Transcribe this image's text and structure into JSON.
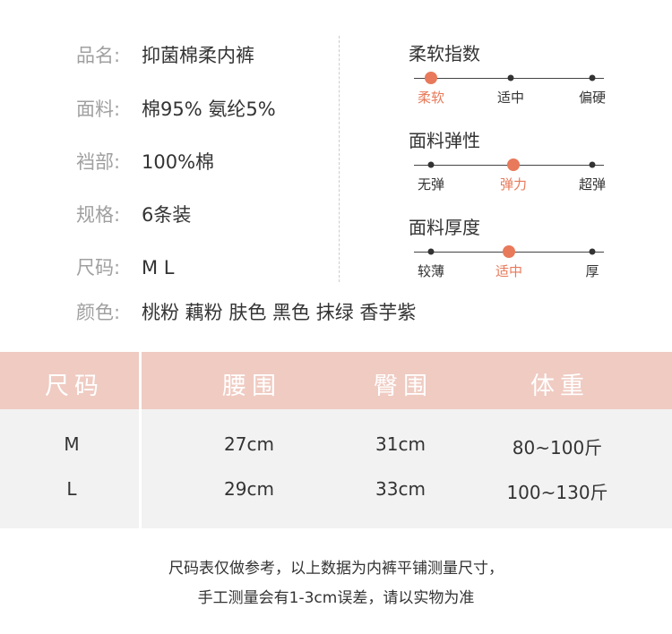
{
  "specs": [
    {
      "label": "品名:",
      "value": "抑菌棉柔内裤"
    },
    {
      "label": "面料:",
      "value": "棉95%  氨纶5%"
    },
    {
      "label": "裆部:",
      "value": "100%棉"
    },
    {
      "label": "规格:",
      "value": "6条装"
    },
    {
      "label": "尺码:",
      "value": "M L"
    },
    {
      "label": "颜色:",
      "value": "桃粉 藕粉 肤色 黑色 抹绿 香芋紫"
    }
  ],
  "indices": [
    {
      "title": "柔软指数",
      "options": [
        "柔软",
        "适中",
        "偏硬"
      ],
      "selected": 0
    },
    {
      "title": "面料弹性",
      "options": [
        "无弹",
        "弹力",
        "超弹"
      ],
      "selected": 1
    },
    {
      "title": "面料厚度",
      "options": [
        "较薄",
        "适中",
        "厚"
      ],
      "selected": 1
    }
  ],
  "accent": "#e8795a",
  "table": {
    "headers": [
      "尺码",
      "腰围",
      "臀围",
      "体重"
    ],
    "rows": [
      [
        "M",
        "27cm",
        "31cm",
        "80~100斤"
      ],
      [
        "L",
        "29cm",
        "33cm",
        "100~130斤"
      ]
    ]
  },
  "notes": [
    "尺码表仅做参考，以上数据为内裤平铺测量尺寸，",
    "手工测量会有1-3cm误差，请以实物为准"
  ]
}
